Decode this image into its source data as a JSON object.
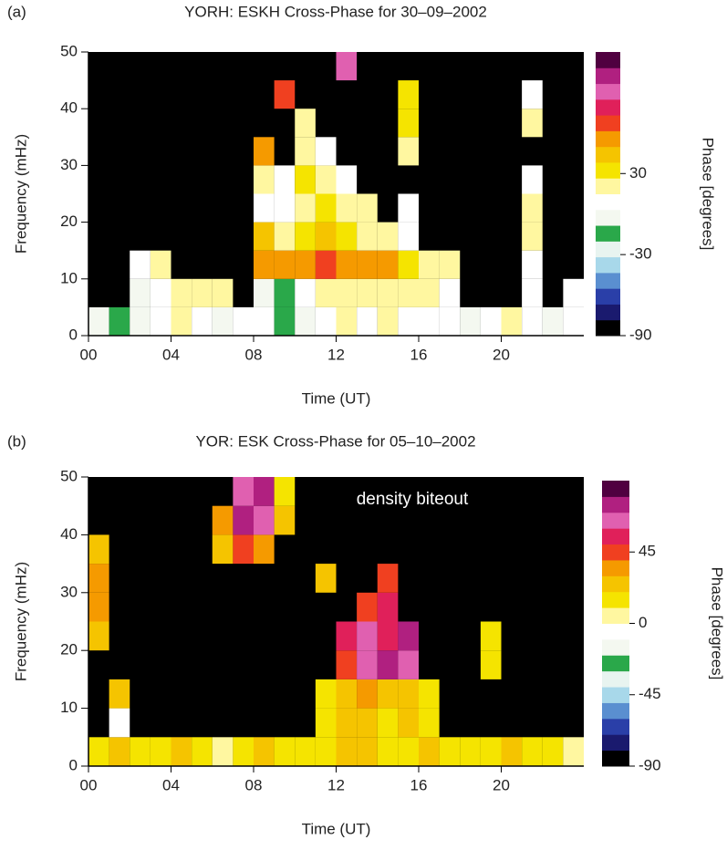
{
  "chart_data": [
    {
      "type": "heatmap",
      "panel": "(a)",
      "title": "YORH: ESKH Cross-Phase for 30–09–2002",
      "x_label": "Time (UT)",
      "y_label": "Frequency (mHz)",
      "xlim": [
        0,
        24
      ],
      "xticks": [
        {
          "value": 0,
          "label": "00"
        },
        {
          "value": 4,
          "label": "04"
        },
        {
          "value": 8,
          "label": "08"
        },
        12,
        16,
        20
      ],
      "ylim": [
        0,
        50
      ],
      "yticks": [
        0,
        10,
        20,
        30,
        40,
        50
      ],
      "xbins": [
        0,
        1,
        2,
        3,
        4,
        5,
        6,
        7,
        8,
        9,
        10,
        11,
        12,
        13,
        14,
        15,
        16,
        17,
        18,
        19,
        20,
        21,
        22,
        23,
        24
      ],
      "ybins": [
        0,
        5,
        10,
        15,
        20,
        25,
        30,
        35,
        40,
        45,
        50
      ],
      "values": [
        [
          0,
          -10,
          0,
          10,
          15,
          10,
          0,
          5,
          10,
          -10,
          0,
          10,
          15,
          10,
          20,
          10,
          5,
          10,
          0,
          10,
          15,
          10,
          0,
          5
        ],
        [
          null,
          null,
          0,
          10,
          20,
          15,
          20,
          null,
          0,
          -20,
          10,
          20,
          15,
          20,
          25,
          15,
          20,
          10,
          null,
          null,
          null,
          5,
          null,
          10
        ],
        [
          null,
          null,
          10,
          15,
          null,
          null,
          null,
          null,
          60,
          55,
          60,
          70,
          60,
          55,
          50,
          30,
          25,
          20,
          null,
          null,
          null,
          10,
          null,
          null
        ],
        [
          null,
          null,
          null,
          null,
          null,
          null,
          null,
          null,
          40,
          20,
          30,
          40,
          30,
          20,
          20,
          10,
          null,
          null,
          null,
          null,
          null,
          20,
          null,
          null
        ],
        [
          null,
          null,
          null,
          null,
          null,
          null,
          null,
          null,
          10,
          10,
          20,
          30,
          20,
          20,
          null,
          10,
          null,
          null,
          null,
          null,
          null,
          20,
          null,
          null
        ],
        [
          null,
          null,
          null,
          null,
          null,
          null,
          null,
          null,
          20,
          10,
          30,
          20,
          10,
          null,
          null,
          null,
          null,
          null,
          null,
          null,
          null,
          10,
          null,
          null
        ],
        [
          null,
          null,
          null,
          null,
          null,
          null,
          null,
          null,
          60,
          null,
          20,
          10,
          null,
          null,
          null,
          20,
          null,
          null,
          null,
          null,
          null,
          null,
          null,
          null
        ],
        [
          null,
          null,
          null,
          null,
          null,
          null,
          null,
          null,
          null,
          null,
          20,
          null,
          null,
          null,
          null,
          30,
          null,
          null,
          null,
          null,
          null,
          20,
          null,
          null
        ],
        [
          null,
          null,
          null,
          null,
          null,
          null,
          null,
          null,
          null,
          70,
          null,
          null,
          null,
          null,
          null,
          30,
          null,
          null,
          null,
          null,
          null,
          10,
          null,
          null
        ],
        [
          null,
          null,
          null,
          null,
          null,
          null,
          null,
          null,
          null,
          null,
          null,
          null,
          90,
          null,
          null,
          null,
          null,
          null,
          null,
          null,
          null,
          null,
          null,
          null
        ]
      ],
      "clim": [
        -90,
        120
      ],
      "cticks": [
        -90,
        -30,
        30
      ],
      "clabel": "Phase [degrees]",
      "colormap": [
        "#000000",
        "#1a1a6e",
        "#2a3fa8",
        "#5a8fd0",
        "#a8d8ea",
        "#e8f4f0",
        "#2aa84a",
        "#f4f8f0",
        "#ffffff",
        "#fff7a0",
        "#f5e400",
        "#f5c400",
        "#f59a00",
        "#f04020",
        "#e0205a",
        "#e060b0",
        "#b02080",
        "#500040"
      ]
    },
    {
      "type": "heatmap",
      "panel": "(b)",
      "title": "YOR: ESK Cross-Phase for 05–10–2002",
      "x_label": "Time (UT)",
      "y_label": "Frequency (mHz)",
      "annotation": "density biteout",
      "xlim": [
        0,
        24
      ],
      "xticks": [
        {
          "value": 0,
          "label": "00"
        },
        {
          "value": 4,
          "label": "04"
        },
        {
          "value": 8,
          "label": "08"
        },
        12,
        16,
        20
      ],
      "ylim": [
        0,
        50
      ],
      "yticks": [
        0,
        10,
        20,
        30,
        40,
        50
      ],
      "xbins": [
        0,
        1,
        2,
        3,
        4,
        5,
        6,
        7,
        8,
        9,
        10,
        11,
        12,
        13,
        14,
        15,
        16,
        17,
        18,
        19,
        20,
        21,
        22,
        23,
        24
      ],
      "ybins": [
        0,
        5,
        10,
        15,
        20,
        25,
        30,
        35,
        40,
        45,
        50
      ],
      "values": [
        [
          10,
          20,
          10,
          10,
          20,
          10,
          0,
          10,
          20,
          10,
          10,
          10,
          20,
          20,
          10,
          10,
          20,
          10,
          10,
          10,
          20,
          10,
          10,
          5
        ],
        [
          null,
          -10,
          null,
          null,
          null,
          null,
          null,
          null,
          null,
          null,
          null,
          10,
          20,
          20,
          15,
          20,
          10,
          null,
          null,
          null,
          null,
          null,
          null,
          null
        ],
        [
          null,
          20,
          null,
          null,
          null,
          null,
          null,
          null,
          null,
          null,
          null,
          10,
          20,
          30,
          20,
          20,
          10,
          null,
          null,
          null,
          null,
          null,
          null,
          null
        ],
        [
          null,
          null,
          null,
          null,
          null,
          null,
          null,
          null,
          null,
          null,
          null,
          null,
          40,
          60,
          70,
          60,
          null,
          null,
          null,
          10,
          null,
          null,
          null,
          null
        ],
        [
          20,
          null,
          null,
          null,
          null,
          null,
          null,
          null,
          null,
          null,
          null,
          null,
          50,
          60,
          50,
          70,
          null,
          null,
          null,
          10,
          null,
          null,
          null,
          null
        ],
        [
          30,
          null,
          null,
          null,
          null,
          null,
          null,
          null,
          null,
          null,
          null,
          null,
          null,
          40,
          50,
          null,
          null,
          null,
          null,
          null,
          null,
          null,
          null,
          null
        ],
        [
          30,
          null,
          null,
          null,
          null,
          null,
          null,
          null,
          null,
          null,
          null,
          20,
          null,
          null,
          40,
          null,
          null,
          null,
          null,
          null,
          null,
          null,
          null,
          null
        ],
        [
          20,
          null,
          null,
          null,
          null,
          null,
          20,
          40,
          30,
          null,
          null,
          null,
          null,
          null,
          null,
          null,
          null,
          null,
          null,
          null,
          null,
          null,
          null,
          null
        ],
        [
          null,
          null,
          null,
          null,
          null,
          null,
          30,
          70,
          60,
          20,
          null,
          null,
          null,
          null,
          null,
          null,
          null,
          null,
          null,
          null,
          null,
          null,
          null,
          null
        ],
        [
          null,
          null,
          null,
          null,
          null,
          null,
          null,
          60,
          70,
          10,
          null,
          null,
          null,
          null,
          null,
          null,
          null,
          null,
          null,
          null,
          null,
          null,
          null,
          null
        ]
      ],
      "clim": [
        -90,
        90
      ],
      "cticks": [
        -90,
        -45,
        0,
        45
      ],
      "clabel": "Phase [degrees]",
      "colormap": [
        "#000000",
        "#1a1a6e",
        "#2a3fa8",
        "#5a8fd0",
        "#a8d8ea",
        "#e8f4f0",
        "#2aa84a",
        "#f4f8f0",
        "#ffffff",
        "#fff7a0",
        "#f5e400",
        "#f5c400",
        "#f59a00",
        "#f04020",
        "#e0205a",
        "#e060b0",
        "#b02080",
        "#500040"
      ]
    }
  ]
}
